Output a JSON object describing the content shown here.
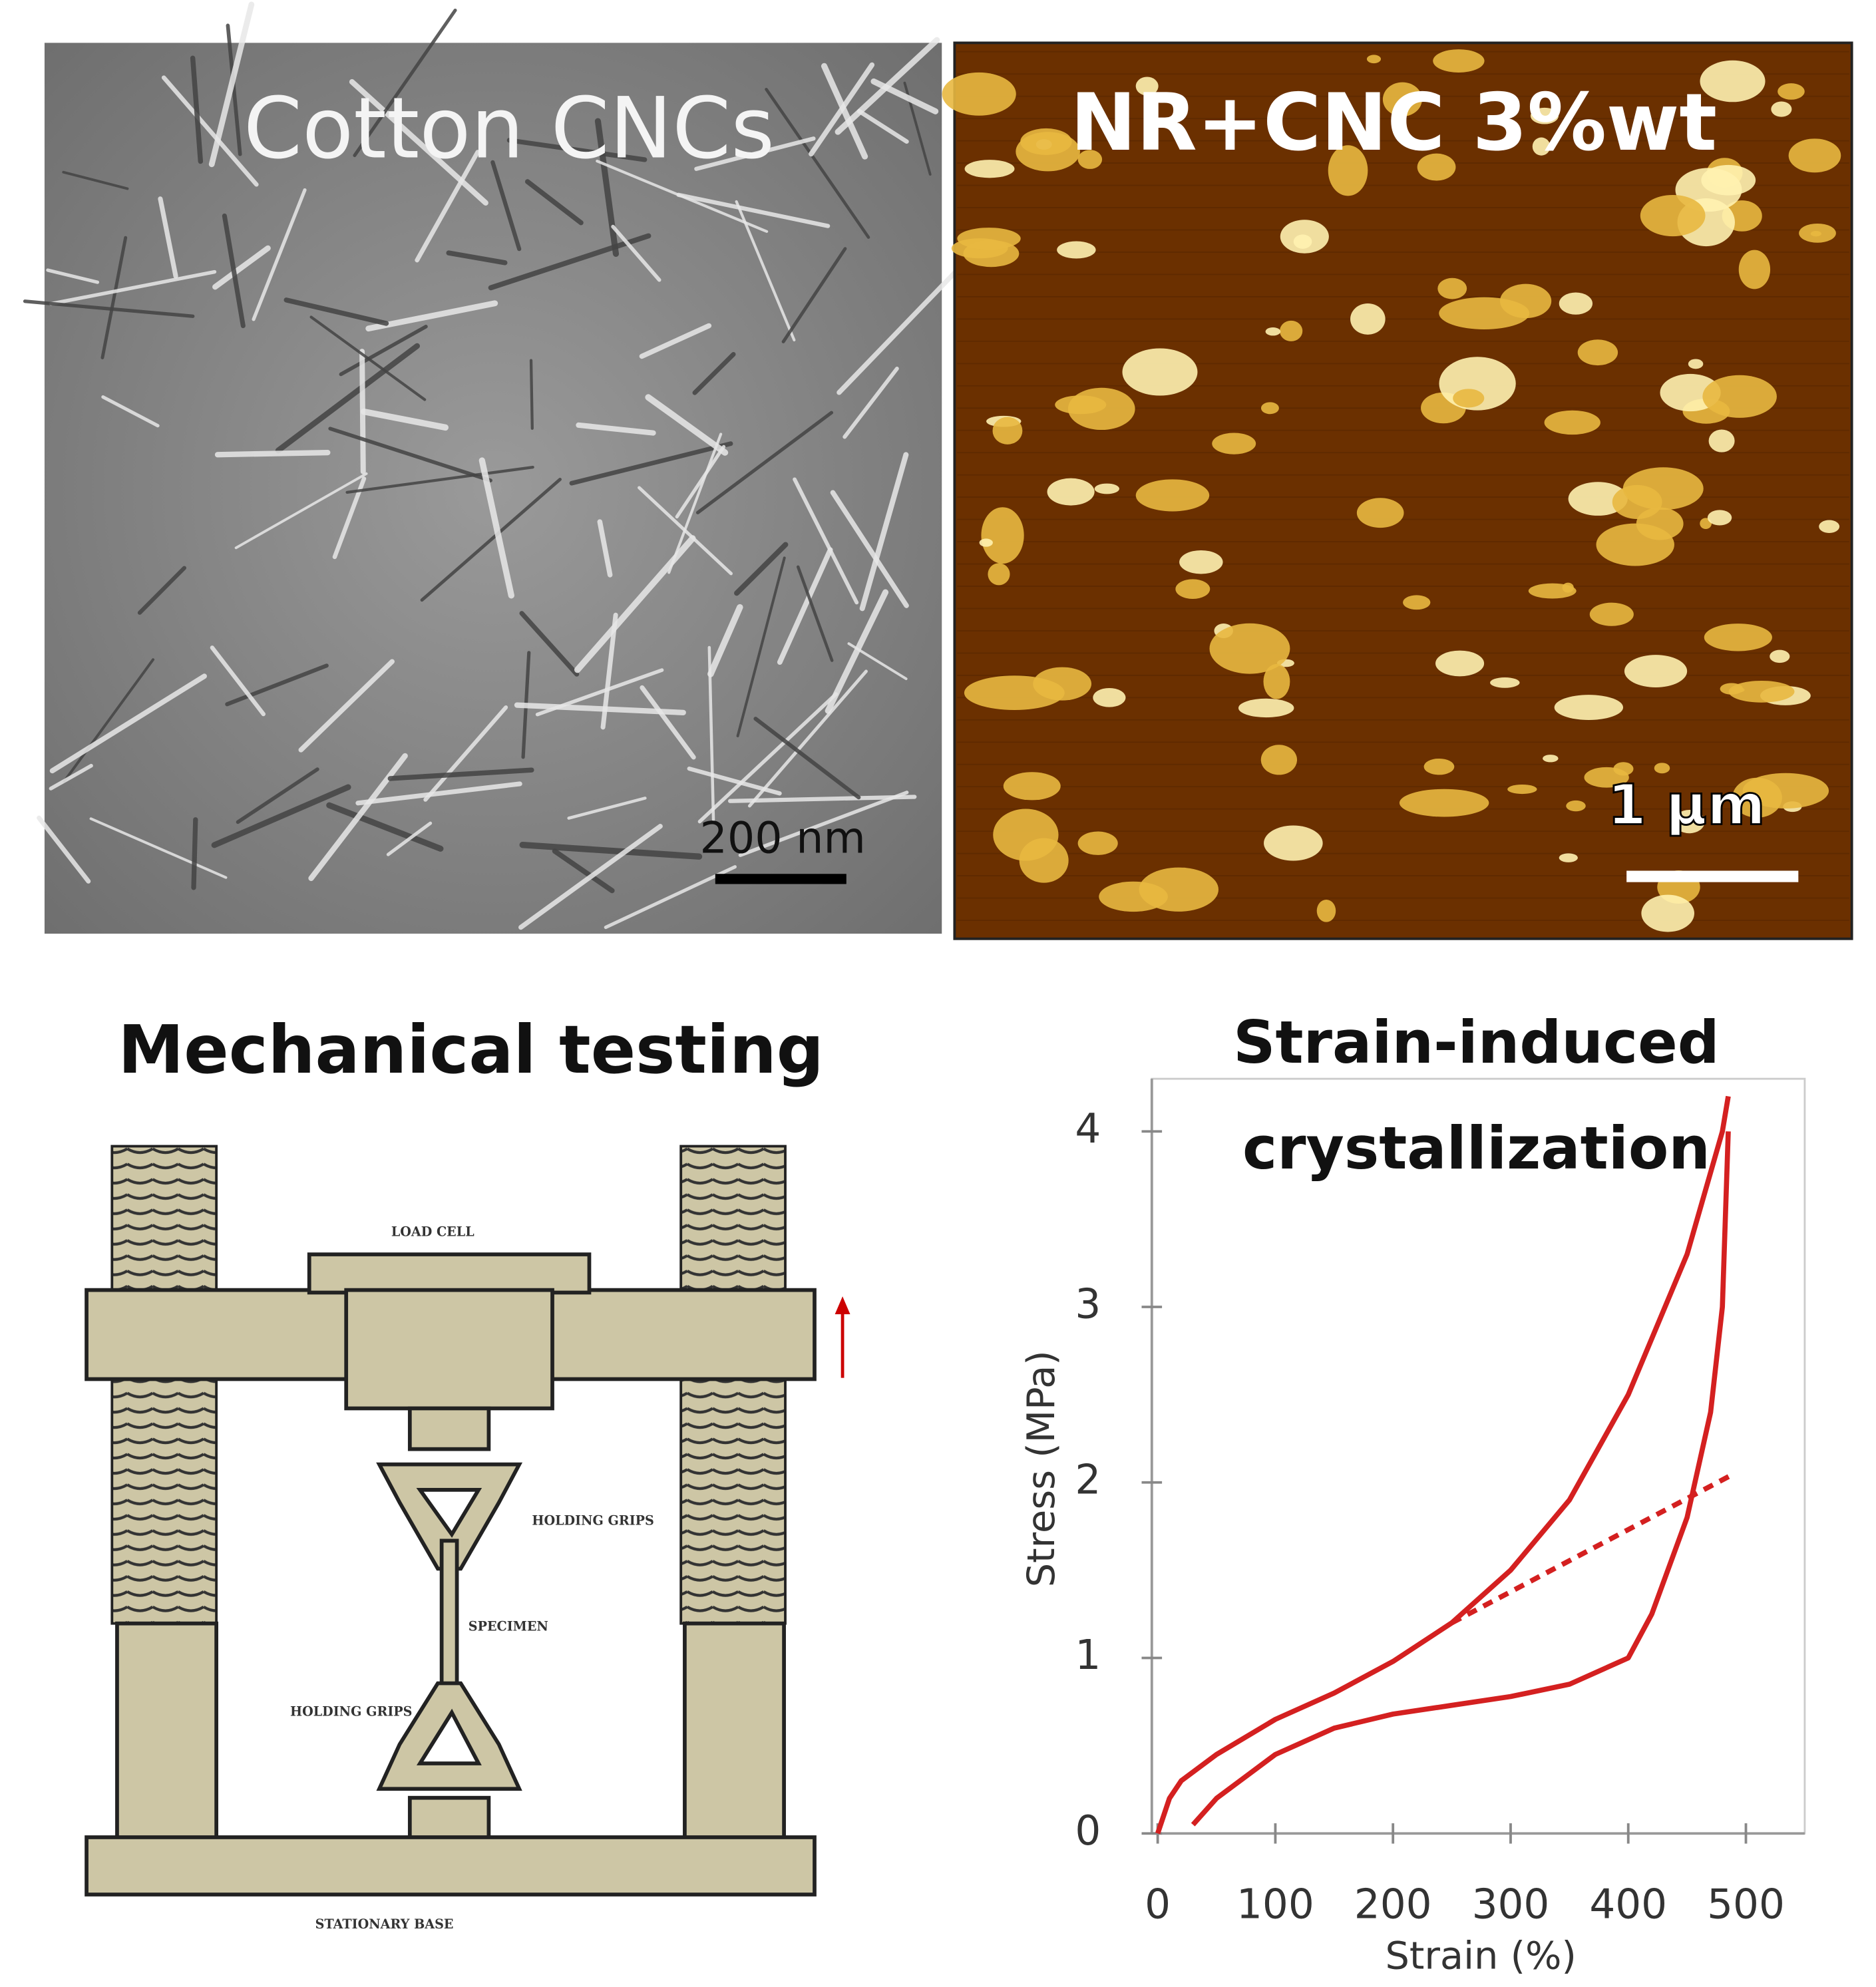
{
  "panels": {
    "tem": {
      "label": "Cotton CNCs",
      "scale_bar": "200 nm"
    },
    "afm": {
      "label": "NR+CNC 3%wt",
      "scale_bar": "1 µm"
    }
  },
  "diagram": {
    "title": "Mechanical testing",
    "load_cell": "LOAD CELL",
    "upper_grips": "HOLDING GRIPS",
    "specimen": "SPECIMEN",
    "lower_grips": "HOLDING GRIPS",
    "base": "STATIONARY BASE"
  },
  "chart_data": {
    "type": "line",
    "title": [
      "Strain-induced",
      "crystallization"
    ],
    "x_label": "Strain (%)",
    "y_label": "Stress (MPa)",
    "xlim": [
      -5,
      550
    ],
    "ylim": [
      0,
      4.3
    ],
    "xticks": [
      0,
      100,
      200,
      300,
      400,
      500
    ],
    "yticks": [
      0,
      1,
      2,
      3,
      4
    ],
    "series": [
      {
        "color": "#d42020",
        "style": "solid",
        "x": [
          0,
          10,
          20,
          30,
          50,
          100,
          150,
          200,
          250,
          300,
          350,
          400,
          450,
          480,
          485
        ],
        "values": [
          0,
          0.2,
          0.3,
          0.35,
          0.45,
          0.65,
          0.8,
          0.98,
          1.2,
          1.5,
          1.9,
          2.5,
          3.3,
          4.0,
          4.2
        ]
      },
      {
        "color": "#d42020",
        "style": "solid",
        "x": [
          485,
          480,
          470,
          450,
          420,
          400,
          350,
          300,
          250,
          200,
          150,
          100,
          50,
          30
        ],
        "values": [
          4.0,
          3.0,
          2.4,
          1.8,
          1.25,
          1.0,
          0.85,
          0.78,
          0.73,
          0.68,
          0.6,
          0.45,
          0.2,
          0.05
        ]
      },
      {
        "color": "#d42020",
        "style": "dashed",
        "x": [
          250,
          490
        ],
        "values": [
          1.2,
          2.05
        ]
      }
    ]
  }
}
